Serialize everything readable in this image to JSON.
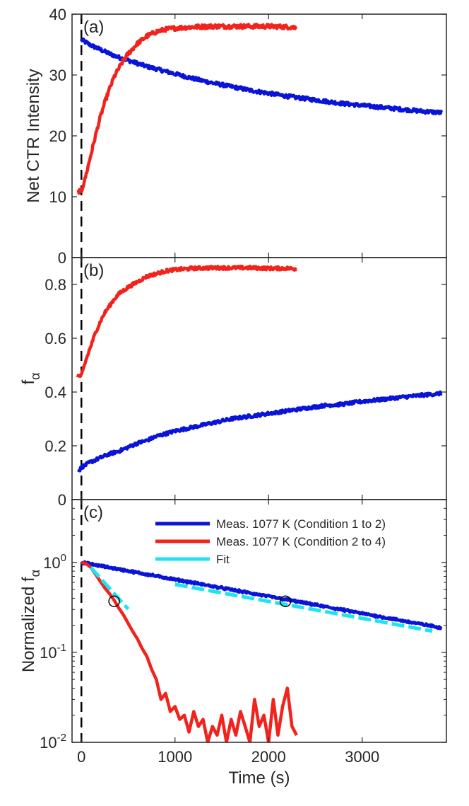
{
  "chart_data": [
    {
      "panel": "a",
      "type": "line",
      "panel_label": "(a)",
      "xlabel": "",
      "ylabel": "Net CTR Intensity",
      "xlim": [
        -100,
        3900
      ],
      "ylim": [
        0,
        40
      ],
      "yscale": "linear",
      "yticks": [
        0,
        10,
        20,
        30,
        40
      ],
      "ytick_labels": [
        "0",
        "10",
        "20",
        "30",
        "40"
      ],
      "vline_x": 0,
      "series": [
        {
          "name": "Meas. 1077 K (Condition 1 to 2)",
          "color": "#0a14d8",
          "x": [
            0,
            100,
            200,
            300,
            400,
            500,
            600,
            700,
            800,
            900,
            1000,
            1200,
            1400,
            1600,
            1800,
            2000,
            2200,
            2400,
            2600,
            2800,
            3000,
            3200,
            3400,
            3600,
            3850
          ],
          "y": [
            35.8,
            34.9,
            34.2,
            33.5,
            32.9,
            32.4,
            31.9,
            31.4,
            31.0,
            30.6,
            30.2,
            29.4,
            28.7,
            28.1,
            27.5,
            27.0,
            26.5,
            26.1,
            25.7,
            25.3,
            25.0,
            24.7,
            24.4,
            24.1,
            23.8
          ],
          "noise": 0.3
        },
        {
          "name": "Meas. 1077 K (Condition 2 to 4)",
          "color": "#f2221c",
          "x": [
            -40,
            0,
            40,
            100,
            150,
            200,
            250,
            300,
            350,
            400,
            450,
            500,
            600,
            700,
            800,
            900,
            1000,
            1200,
            1400,
            1600,
            1800,
            2000,
            2200,
            2300
          ],
          "y": [
            10.9,
            10.9,
            13.0,
            16.8,
            20.0,
            23.0,
            25.5,
            27.7,
            29.7,
            31.1,
            32.4,
            33.5,
            35.2,
            36.4,
            37.1,
            37.5,
            37.7,
            37.9,
            38.0,
            38.0,
            38.0,
            38.0,
            37.9,
            37.8
          ],
          "noise": 0.35
        }
      ]
    },
    {
      "panel": "b",
      "type": "line",
      "panel_label": "(b)",
      "xlabel": "",
      "ylabel_main": "f",
      "ylabel_sub": "α",
      "xlim": [
        -100,
        3900
      ],
      "ylim": [
        0,
        0.9
      ],
      "yscale": "linear",
      "yticks": [
        0,
        0.2,
        0.4,
        0.6,
        0.8
      ],
      "ytick_labels": [
        "0",
        "0.2",
        "0.4",
        "0.6",
        "0.8"
      ],
      "vline_x": 0,
      "series": [
        {
          "name": "Meas. 1077 K (Condition 1 to 2)",
          "color": "#0a14d8",
          "x": [
            -30,
            0,
            100,
            200,
            300,
            400,
            500,
            600,
            700,
            800,
            900,
            1000,
            1200,
            1400,
            1600,
            1800,
            2000,
            2200,
            2400,
            2600,
            2800,
            3000,
            3200,
            3400,
            3600,
            3850
          ],
          "y": [
            0.105,
            0.12,
            0.14,
            0.155,
            0.17,
            0.18,
            0.195,
            0.21,
            0.22,
            0.235,
            0.245,
            0.255,
            0.27,
            0.285,
            0.3,
            0.31,
            0.32,
            0.33,
            0.34,
            0.35,
            0.355,
            0.365,
            0.372,
            0.38,
            0.387,
            0.395
          ],
          "noise": 0.006
        },
        {
          "name": "Meas. 1077 K (Condition 2 to 4)",
          "color": "#f2221c",
          "x": [
            -40,
            0,
            50,
            100,
            150,
            200,
            250,
            300,
            350,
            400,
            500,
            600,
            700,
            800,
            900,
            1000,
            1200,
            1400,
            1600,
            1800,
            2000,
            2200,
            2300
          ],
          "y": [
            0.46,
            0.46,
            0.52,
            0.57,
            0.62,
            0.66,
            0.695,
            0.72,
            0.745,
            0.765,
            0.79,
            0.81,
            0.83,
            0.84,
            0.85,
            0.855,
            0.86,
            0.862,
            0.862,
            0.862,
            0.86,
            0.86,
            0.858
          ],
          "noise": 0.006
        }
      ]
    },
    {
      "panel": "c",
      "type": "line",
      "panel_label": "(c)",
      "xlabel": "Time (s)",
      "ylabel_main": "Normalized f",
      "ylabel_sub": "α",
      "xlim": [
        -100,
        3900
      ],
      "ylim": [
        0.01,
        5
      ],
      "yscale": "log",
      "yticks": [
        0.01,
        0.1,
        1
      ],
      "ytick_labels": [
        {
          "base": "10",
          "exp": "-2"
        },
        {
          "base": "10",
          "exp": "-1"
        },
        {
          "base": "10",
          "exp": "0"
        }
      ],
      "xticks": [
        0,
        1000,
        2000,
        3000
      ],
      "xtick_labels": [
        "0",
        "1000",
        "2000",
        "3000"
      ],
      "vline_x": 0,
      "legend": {
        "position": "top-right",
        "entries": [
          {
            "label": "Meas. 1077 K (Condition 1 to 2)",
            "color": "#0a14d8"
          },
          {
            "label": "Meas. 1077 K (Condition 2 to 4)",
            "color": "#f2221c"
          },
          {
            "label": "Fit",
            "color": "#1ee4f0"
          }
        ]
      },
      "series": [
        {
          "name": "Meas. 1077 K (Condition 1 to 2)",
          "color": "#0a14d8",
          "decay_tau": 2300,
          "x_range": [
            0,
            3850
          ],
          "noise": 0.025
        },
        {
          "name": "Meas. 1077 K (Condition 2 to 4)",
          "color": "#f2221c",
          "x": [
            0,
            50,
            100,
            150,
            200,
            250,
            300,
            350,
            400,
            450,
            500,
            550,
            600,
            650,
            700,
            750,
            800,
            850,
            900,
            950,
            1000,
            1050,
            1100,
            1150,
            1200,
            1250,
            1300,
            1350,
            1400,
            1450,
            1500,
            1550,
            1600,
            1650,
            1700,
            1750,
            1800,
            1850,
            1900,
            1950,
            2000,
            2050,
            2100,
            2150,
            2200,
            2250,
            2300
          ],
          "y": [
            1.0,
            0.97,
            0.88,
            0.74,
            0.62,
            0.52,
            0.45,
            0.38,
            0.31,
            0.26,
            0.21,
            0.17,
            0.14,
            0.11,
            0.09,
            0.065,
            0.05,
            0.03,
            0.035,
            0.022,
            0.025,
            0.018,
            0.02,
            0.013,
            0.022,
            0.015,
            0.018,
            0.01,
            0.015,
            0.012,
            0.02,
            0.01,
            0.018,
            0.012,
            0.022,
            0.015,
            0.01,
            0.03,
            0.015,
            0.02,
            0.01,
            0.03,
            0.012,
            0.025,
            0.04,
            0.015,
            0.012
          ],
          "noise": 0.0
        }
      ],
      "fits": [
        {
          "name": "Fit",
          "color": "#1ee4f0",
          "x_range": [
            100,
            500
          ],
          "y0": 0.88,
          "tau": 375
        },
        {
          "name": "Fit",
          "color": "#1ee4f0",
          "x_range": [
            1000,
            3750
          ],
          "y0": 0.57,
          "tau": 2300
        }
      ],
      "markers": [
        {
          "x": 350,
          "y": 0.37
        },
        {
          "x": 2180,
          "y": 0.37
        }
      ]
    }
  ]
}
